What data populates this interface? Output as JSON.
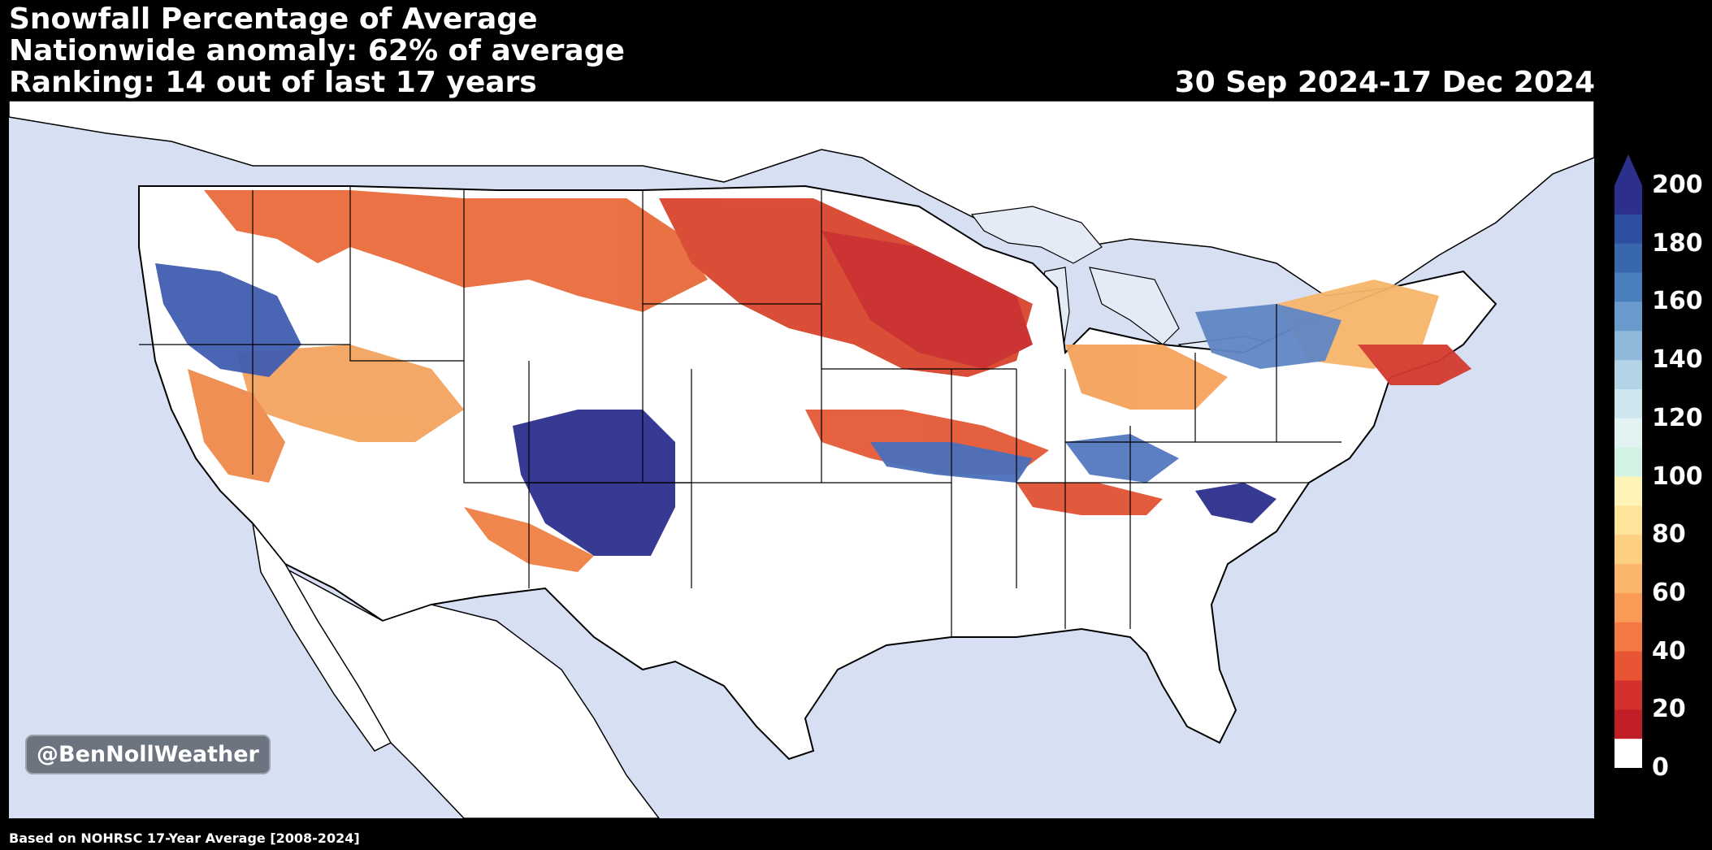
{
  "header": {
    "title": "Snowfall Percentage of Average",
    "anomaly": "Nationwide anomaly: 62% of average",
    "ranking": "Ranking: 14 out of last 17 years",
    "date_range": "30 Sep 2024-17 Dec 2024"
  },
  "map": {
    "watermark": "@BenNollWeather",
    "colors": {
      "ocean": "#d6e0f2",
      "land": "#ffffff",
      "lakes": "#e4ebf7",
      "borders": "#000000"
    }
  },
  "colorbar": {
    "labels": [
      "200",
      "180",
      "160",
      "140",
      "120",
      "100",
      "80",
      "60",
      "40",
      "20",
      "0"
    ],
    "colors": [
      "#2c2f8c",
      "#2e4f9f",
      "#3867ae",
      "#4a7fbd",
      "#6a9bcc",
      "#8fb8da",
      "#b3d3e7",
      "#cfe6f0",
      "#e3f3f3",
      "#d2f2e4",
      "#fff4b8",
      "#fee39a",
      "#fdcf82",
      "#fcb66c",
      "#f99a55",
      "#f37844",
      "#e85535",
      "#d4302c",
      "#c01f28",
      "#ffffff"
    ]
  },
  "footnote": "Based on NOHRSC 17-Year Average [2008-2024]"
}
